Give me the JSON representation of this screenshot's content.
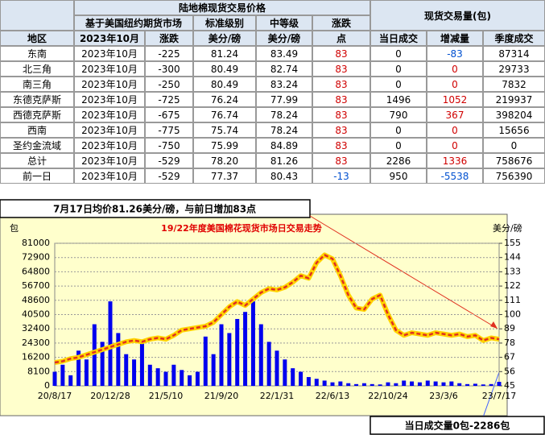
{
  "table": {
    "header": {
      "title_price": "陆地棉现货交易价格",
      "title_volume": "现货交易量(包)",
      "sub_futures": "基于美国纽约期货市场",
      "sub_standard": "标准级别",
      "sub_middle": "中等级",
      "sub_change": "涨跌",
      "columns": [
        "地区",
        "2023年10月",
        "涨跌",
        "美分/磅",
        "美分/磅",
        "点",
        "当日成交",
        "增减量",
        "季度成交"
      ]
    },
    "rows": [
      [
        "东南",
        "2023年10月",
        "-225",
        "81.24",
        "83.49",
        "83",
        "0",
        "-83",
        "87314"
      ],
      [
        "北三角",
        "2023年10月",
        "-300",
        "80.49",
        "82.74",
        "83",
        "0",
        "0",
        "29733"
      ],
      [
        "南三角",
        "2023年10月",
        "-250",
        "80.49",
        "83.24",
        "83",
        "0",
        "0",
        "7832"
      ],
      [
        "东德克萨斯",
        "2023年10月",
        "-725",
        "76.24",
        "77.99",
        "83",
        "1496",
        "1052",
        "219937"
      ],
      [
        "西德克萨斯",
        "2023年10月",
        "-675",
        "76.74",
        "78.24",
        "83",
        "790",
        "367",
        "398204"
      ],
      [
        "西南",
        "2023年10月",
        "-775",
        "75.74",
        "78.24",
        "83",
        "0",
        "0",
        "15656"
      ],
      [
        "圣约金流域",
        "2023年10月",
        "-750",
        "75.99",
        "84.89",
        "83",
        "0",
        "0",
        "0"
      ],
      [
        "总计",
        "2023年10月",
        "-529",
        "78.20",
        "81.26",
        "83",
        "2286",
        "1336",
        "758676"
      ],
      [
        "前一日",
        "2023年10月",
        "-529",
        "77.37",
        "80.43",
        "-13",
        "950",
        "-5538",
        "756390"
      ]
    ]
  },
  "banner": "7月17日均价81.26美分/磅，与前日增加83点",
  "footer_note": "当日成交量0包-2286包",
  "chart_data": {
    "type": "bar_line",
    "title": "19/22年度美国棉花现货市场日交易走势",
    "y_label": "包",
    "y2_label": "美分/磅",
    "categories": [
      "20/8/17",
      null,
      null,
      null,
      null,
      null,
      null,
      "20/12/28",
      null,
      null,
      null,
      null,
      null,
      null,
      "21/5/10",
      null,
      null,
      null,
      null,
      null,
      null,
      "21/9/20",
      null,
      null,
      null,
      null,
      null,
      null,
      "22/1/31",
      null,
      null,
      null,
      null,
      null,
      null,
      "22/6/13",
      null,
      null,
      null,
      null,
      null,
      null,
      "22/10/24",
      null,
      null,
      null,
      null,
      null,
      null,
      "23/3/6",
      null,
      null,
      null,
      null,
      null,
      null,
      "23/7/17"
    ],
    "series": [
      {
        "type": "bar",
        "color": "#0000ee",
        "values": [
          8000,
          12000,
          6000,
          20000,
          15000,
          35000,
          25000,
          48000,
          30000,
          18000,
          15000,
          25000,
          12000,
          10000,
          8000,
          12000,
          9000,
          6000,
          8000,
          28000,
          18000,
          35000,
          30000,
          38000,
          42000,
          48000,
          35000,
          25000,
          20000,
          15000,
          10000,
          8000,
          5000,
          4000,
          3000,
          2000,
          2500,
          1500,
          1000,
          1500,
          1000,
          800,
          2000,
          1500,
          3000,
          2500,
          2000,
          3000,
          2500,
          2000,
          2500,
          1500,
          1000,
          1200,
          800,
          1000,
          2286
        ]
      },
      {
        "type": "line",
        "axis": "y2",
        "color": "#e03020",
        "values": [
          63,
          64,
          66,
          67,
          69,
          71,
          73,
          75,
          77,
          79,
          80,
          79,
          81,
          82,
          81,
          84,
          88,
          89,
          90,
          91,
          94,
          100,
          106,
          110,
          107,
          112,
          117,
          120,
          119,
          121,
          125,
          130,
          128,
          140,
          146,
          143,
          130,
          115,
          105,
          104,
          112,
          115,
          100,
          88,
          84,
          86,
          85,
          84,
          86,
          85,
          84,
          85,
          83,
          84,
          80,
          82,
          81
        ]
      }
    ],
    "ylim": [
      0,
      81000
    ],
    "yticks": [
      0,
      8100,
      16200,
      24300,
      32400,
      40500,
      48600,
      56700,
      64800,
      72900,
      81000
    ],
    "y2lim": [
      45,
      155
    ],
    "y2ticks": [
      45,
      56,
      67,
      78,
      89,
      100,
      111,
      122,
      133,
      144,
      155
    ],
    "grid": true
  }
}
